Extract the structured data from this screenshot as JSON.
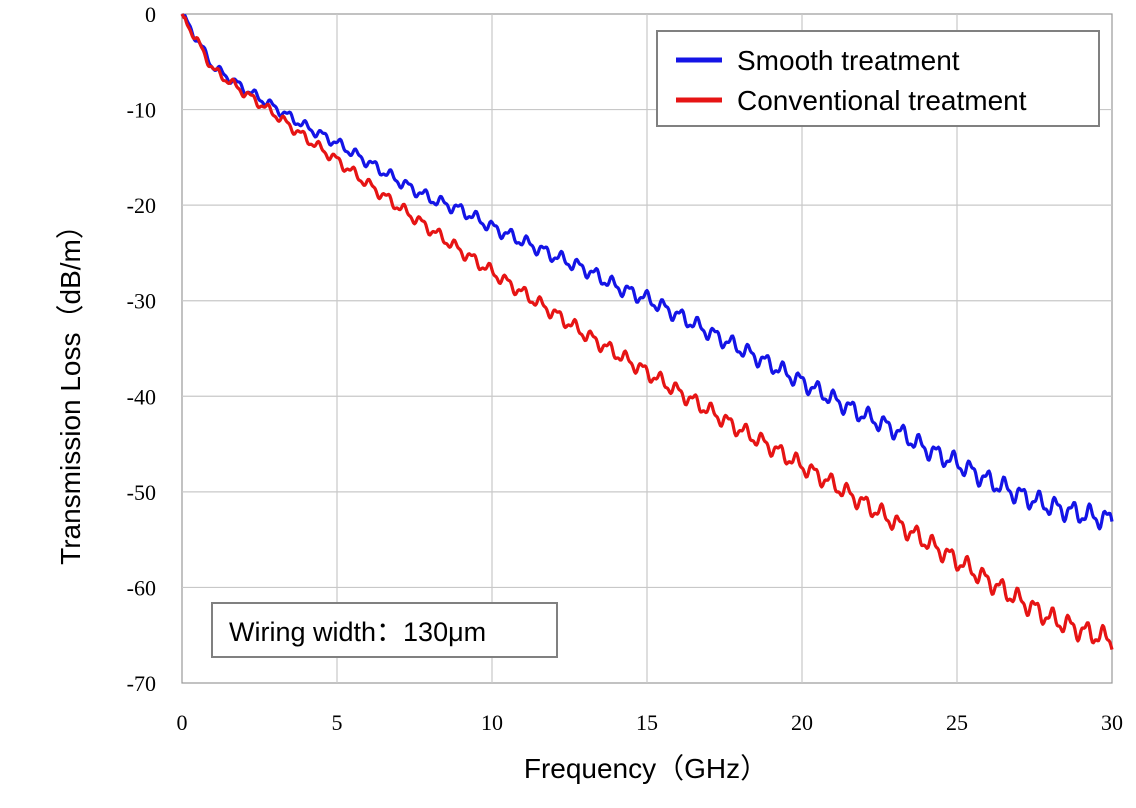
{
  "chart_data": {
    "type": "line",
    "title": "",
    "xlabel": "Frequency（GHz）",
    "ylabel": "Transmission Loss（dB/m）",
    "xlim": [
      0,
      30
    ],
    "ylim": [
      -70,
      0
    ],
    "xticks": [
      0,
      5,
      10,
      15,
      20,
      25,
      30
    ],
    "yticks": [
      0,
      -10,
      -20,
      -30,
      -40,
      -50,
      -60,
      -70
    ],
    "xtick_labels": [
      "0",
      "5",
      "10",
      "15",
      "20",
      "25",
      "30"
    ],
    "ytick_labels": [
      "0",
      "-10",
      "-20",
      "-30",
      "-40",
      "-50",
      "-60",
      "-70"
    ],
    "grid": true,
    "legend_position": "top-right",
    "annotation": "Wiring width：130μm",
    "series": [
      {
        "name": "Smooth treatment",
        "color": "#1414e6",
        "x": [
          0,
          1,
          2,
          3,
          4,
          5,
          6,
          7,
          8,
          9,
          10,
          11,
          12,
          13,
          14,
          15,
          16,
          17,
          18,
          19,
          20,
          21,
          22,
          23,
          24,
          25,
          26,
          27,
          28,
          29,
          30
        ],
        "y": [
          0,
          -5.5,
          -7.8,
          -9.8,
          -11.8,
          -13.5,
          -15.5,
          -17.5,
          -19.3,
          -20.5,
          -22.3,
          -23.8,
          -25.3,
          -26.7,
          -28.5,
          -29.8,
          -31.5,
          -33.3,
          -35,
          -36.7,
          -38.5,
          -40.3,
          -42,
          -43.5,
          -45.5,
          -47,
          -48.8,
          -50.3,
          -51.5,
          -52.3,
          -53
        ]
      },
      {
        "name": "Conventional treatment",
        "color": "#e61414",
        "x": [
          0,
          1,
          2,
          3,
          4,
          5,
          6,
          7,
          8,
          9,
          10,
          11,
          12,
          13,
          14,
          15,
          16,
          17,
          18,
          19,
          20,
          21,
          22,
          23,
          24,
          25,
          26,
          27,
          28,
          29,
          30
        ],
        "y": [
          0,
          -5.8,
          -8.2,
          -10.5,
          -13,
          -15.3,
          -17.8,
          -20.2,
          -22.5,
          -24.8,
          -27,
          -29.2,
          -31.3,
          -33.5,
          -35.5,
          -37.5,
          -39.5,
          -41.5,
          -43.5,
          -45.3,
          -47.3,
          -49.2,
          -51.2,
          -53.2,
          -55.2,
          -57.2,
          -59.3,
          -61.3,
          -63.2,
          -64.5,
          -65.5
        ]
      }
    ]
  }
}
